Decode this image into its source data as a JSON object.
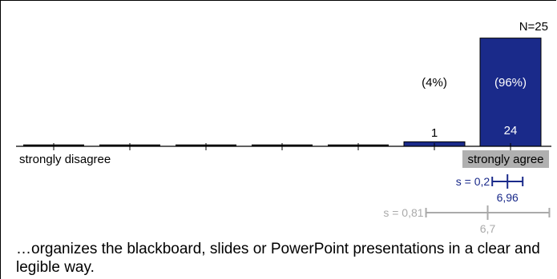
{
  "chart_data": {
    "type": "bar",
    "n_label": "N=25",
    "scale_min_label": "strongly disagree",
    "scale_max_label": "strongly agree",
    "categories": [
      1,
      2,
      3,
      4,
      5,
      6,
      7
    ],
    "counts": [
      0,
      0,
      0,
      0,
      0,
      1,
      24
    ],
    "percent_labels": [
      "",
      "",
      "",
      "",
      "",
      "(4%)",
      "(96%)"
    ],
    "count_labels": [
      "",
      "",
      "",
      "",
      "",
      "1",
      "24"
    ],
    "bar_color": "#1a2a8a",
    "ylim": [
      0,
      25
    ],
    "course_stats": {
      "label": "s = 0,2",
      "mean_label": "6,96",
      "mean": 6.96,
      "sd": 0.2,
      "color": "#1a2a8a"
    },
    "comparison_stats": {
      "label": "s = 0,81",
      "mean_label": "6,7",
      "mean": 6.7,
      "sd": 0.81,
      "color": "#aaaaaa"
    },
    "highlight_color": "#b0b0b0"
  },
  "question": "…organizes the blackboard, slides or PowerPoint presentations in a clear and legible way."
}
